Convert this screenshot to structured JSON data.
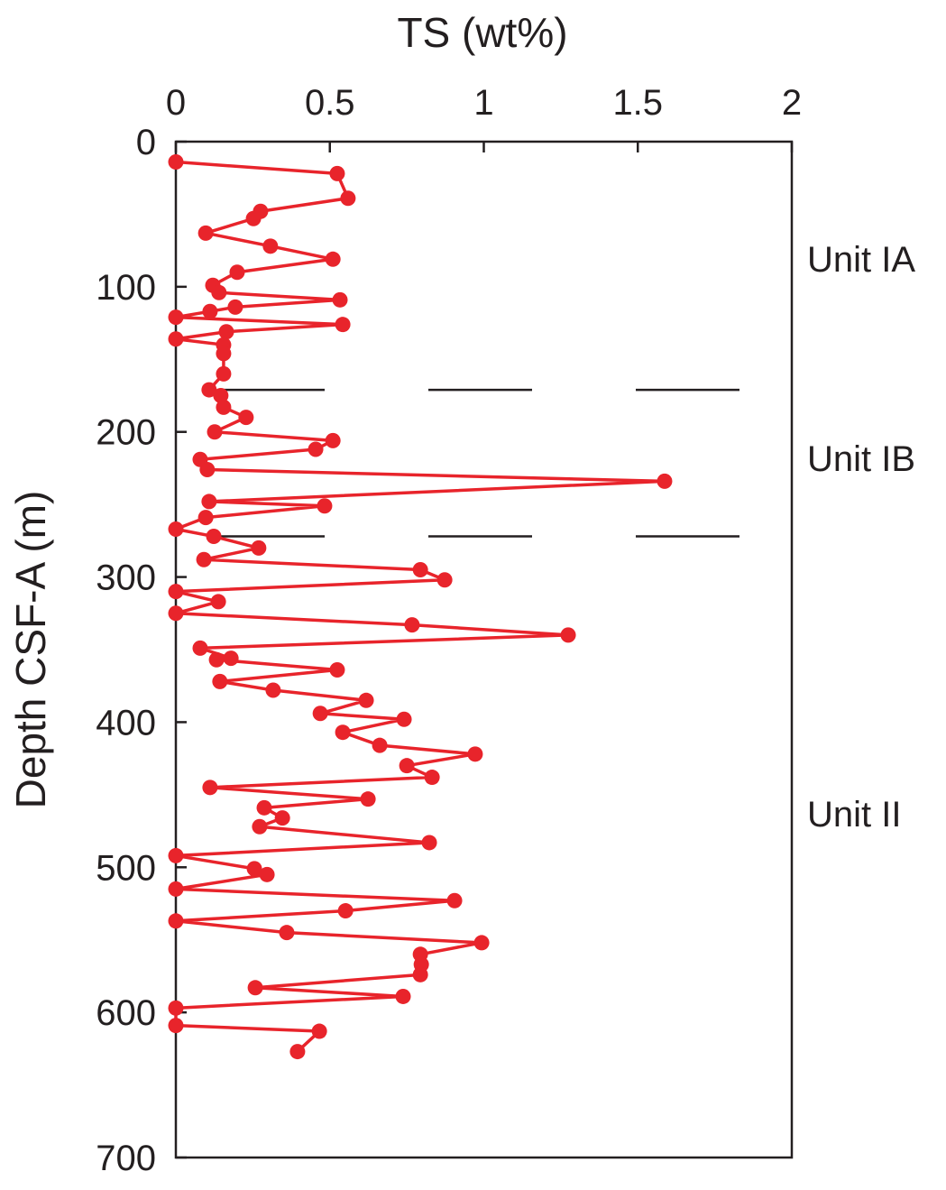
{
  "chart_data": {
    "type": "line",
    "title": "TS (wt%)",
    "ylabel": "Depth CSF-A (m)",
    "xlim": [
      0,
      2
    ],
    "xticks": [
      0,
      0.5,
      1,
      1.5,
      2
    ],
    "ylim": [
      0,
      700
    ],
    "yticks": [
      0,
      100,
      200,
      300,
      400,
      500,
      600,
      700
    ],
    "y_inverted": true,
    "color": "#e8242b",
    "x": [
      0,
      0.524,
      0.559,
      0.275,
      0.252,
      0.097,
      0.307,
      0.51,
      0.199,
      0.12,
      0.14,
      0.533,
      0.193,
      0.111,
      0,
      0.542,
      0.164,
      0,
      0.155,
      0.155,
      0.155,
      0.108,
      0.146,
      0.155,
      0.228,
      0.126,
      0.51,
      0.454,
      0.079,
      0.102,
      1.587,
      0.108,
      0.483,
      0.097,
      0,
      0.123,
      0.269,
      0.091,
      0.794,
      0.873,
      0,
      0.138,
      0,
      0.767,
      1.274,
      0.079,
      0.179,
      0.132,
      0.524,
      0.143,
      0.316,
      0.618,
      0.469,
      0.741,
      0.542,
      0.662,
      0.972,
      0.75,
      0.832,
      0.111,
      0.624,
      0.287,
      0.346,
      0.272,
      0.823,
      0,
      0.255,
      0.296,
      0,
      0.905,
      0.551,
      0,
      0.36,
      0.993,
      0.794,
      0.797,
      0.794,
      0.258,
      0.738,
      0,
      0,
      0.466,
      0.395
    ],
    "values": [
      14,
      22,
      39,
      48,
      53,
      63,
      72,
      81,
      90,
      99,
      104,
      109,
      114,
      117,
      121,
      126,
      131,
      136,
      140,
      146,
      160,
      171,
      175,
      183,
      190,
      200,
      206,
      212,
      219,
      226,
      234,
      248,
      251,
      259,
      267,
      272,
      280,
      288,
      295,
      302,
      310,
      317,
      325,
      333,
      340,
      349,
      356,
      357,
      364,
      372,
      378,
      385,
      394,
      398,
      407,
      416,
      422,
      430,
      438,
      445,
      453,
      459,
      466,
      472,
      483,
      492,
      501,
      505,
      515,
      523,
      530,
      537,
      545,
      552,
      560,
      567,
      574,
      583,
      589,
      597,
      609,
      613,
      627
    ],
    "boundaries": [
      171,
      272
    ],
    "units": [
      "Unit IA",
      "Unit IB",
      "Unit II"
    ]
  }
}
